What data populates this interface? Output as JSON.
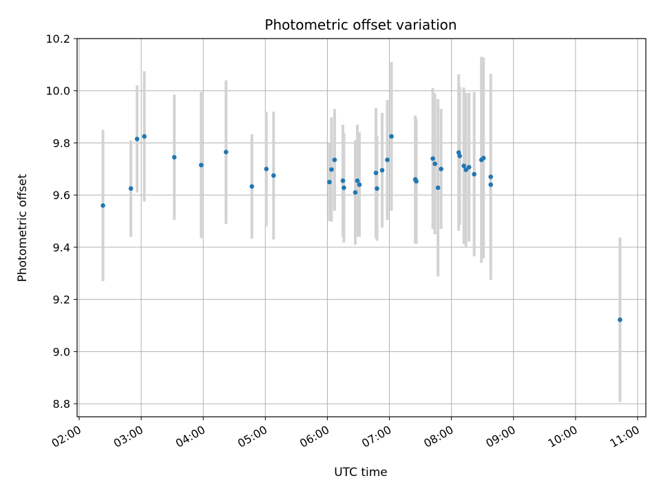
{
  "chart_data": {
    "type": "scatter",
    "title": "Photometric offset variation",
    "xlabel": "UTC time",
    "ylabel": "Photometric offset",
    "xlim": [
      "01:58",
      "11:08"
    ],
    "ylim": [
      8.75,
      10.2
    ],
    "x_ticks": [
      "02:00",
      "03:00",
      "04:00",
      "05:00",
      "06:00",
      "07:00",
      "08:00",
      "09:00",
      "10:00",
      "11:00"
    ],
    "y_ticks": [
      8.8,
      9.0,
      9.2,
      9.4,
      9.6,
      9.8,
      10.0,
      10.2
    ],
    "grid": true,
    "colors": {
      "point": "#1f77b4",
      "errorbar": "#d3d3d3",
      "grid": "#b0b0b0"
    },
    "series": [
      {
        "points": [
          {
            "x": "02:23",
            "y": 9.56,
            "yerr": 0.29
          },
          {
            "x": "02:50",
            "y": 9.625,
            "yerr": 0.185
          },
          {
            "x": "02:56",
            "y": 9.815,
            "yerr": 0.205
          },
          {
            "x": "03:03",
            "y": 9.825,
            "yerr": 0.25
          },
          {
            "x": "03:32",
            "y": 9.745,
            "yerr": 0.24
          },
          {
            "x": "03:58",
            "y": 9.715,
            "yerr": 0.28
          },
          {
            "x": "04:22",
            "y": 9.765,
            "yerr": 0.275
          },
          {
            "x": "04:47",
            "y": 9.633,
            "yerr": 0.2
          },
          {
            "x": "05:01",
            "y": 9.7,
            "yerr": 0.22
          },
          {
            "x": "05:08",
            "y": 9.675,
            "yerr": 0.245
          },
          {
            "x": "06:02",
            "y": 9.65,
            "yerr": 0.15
          },
          {
            "x": "06:04",
            "y": 9.698,
            "yerr": 0.2
          },
          {
            "x": "06:07",
            "y": 9.735,
            "yerr": 0.195
          },
          {
            "x": "06:15",
            "y": 9.655,
            "yerr": 0.215
          },
          {
            "x": "06:16",
            "y": 9.628,
            "yerr": 0.21
          },
          {
            "x": "06:27",
            "y": 9.61,
            "yerr": 0.2
          },
          {
            "x": "06:29",
            "y": 9.655,
            "yerr": 0.215
          },
          {
            "x": "06:31",
            "y": 9.64,
            "yerr": 0.2
          },
          {
            "x": "06:47",
            "y": 9.685,
            "yerr": 0.25
          },
          {
            "x": "06:48",
            "y": 9.625,
            "yerr": 0.2
          },
          {
            "x": "06:53",
            "y": 9.695,
            "yerr": 0.22
          },
          {
            "x": "06:58",
            "y": 9.735,
            "yerr": 0.23
          },
          {
            "x": "07:02",
            "y": 9.825,
            "yerr": 0.285
          },
          {
            "x": "07:25",
            "y": 9.66,
            "yerr": 0.245
          },
          {
            "x": "07:26",
            "y": 9.653,
            "yerr": 0.24
          },
          {
            "x": "07:42",
            "y": 9.74,
            "yerr": 0.27
          },
          {
            "x": "07:44",
            "y": 9.72,
            "yerr": 0.27
          },
          {
            "x": "07:47",
            "y": 9.628,
            "yerr": 0.34
          },
          {
            "x": "07:50",
            "y": 9.7,
            "yerr": 0.23
          },
          {
            "x": "08:07",
            "y": 9.763,
            "yerr": 0.3
          },
          {
            "x": "08:08",
            "y": 9.75,
            "yerr": 0.265
          },
          {
            "x": "08:12",
            "y": 9.712,
            "yerr": 0.3
          },
          {
            "x": "08:14",
            "y": 9.697,
            "yerr": 0.295
          },
          {
            "x": "08:17",
            "y": 9.707,
            "yerr": 0.285
          },
          {
            "x": "08:22",
            "y": 9.68,
            "yerr": 0.315
          },
          {
            "x": "08:29",
            "y": 9.735,
            "yerr": 0.395
          },
          {
            "x": "08:31",
            "y": 9.742,
            "yerr": 0.385
          },
          {
            "x": "08:38",
            "y": 9.67,
            "yerr": 0.395
          },
          {
            "x": "08:38",
            "y": 9.64,
            "yerr": 0.3
          },
          {
            "x": "10:43",
            "y": 9.122,
            "yerr": 0.315
          }
        ]
      }
    ]
  }
}
